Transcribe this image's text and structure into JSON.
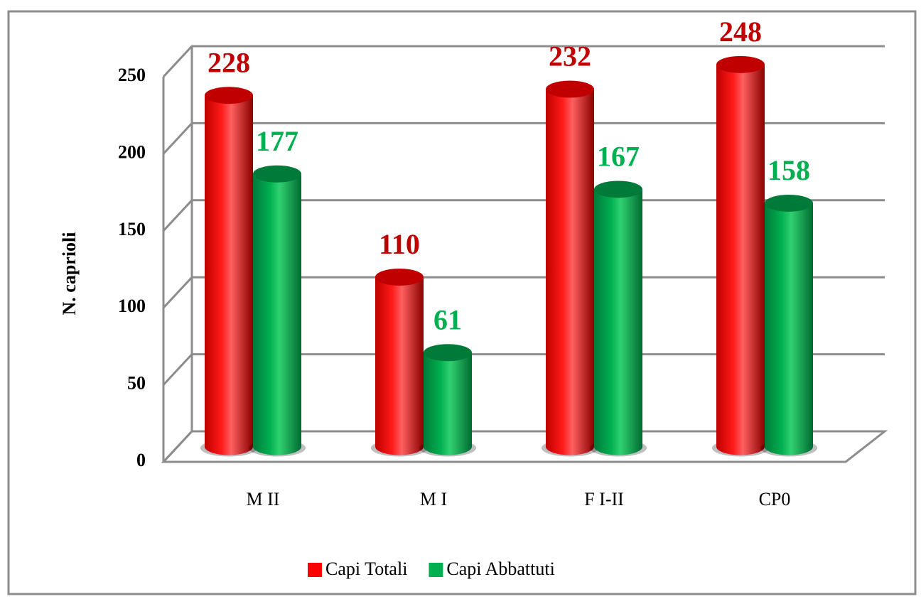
{
  "chart_data": {
    "type": "bar3d",
    "y_axis_label": "N. caprioli",
    "categories": [
      "M II",
      "M I",
      "F I-II",
      "CP0"
    ],
    "series": [
      {
        "name": "Capi Totali",
        "color": "#ff0000",
        "values": [
          228,
          110,
          232,
          248
        ]
      },
      {
        "name": "Capi Abbattuti",
        "color": "#00b050",
        "values": [
          177,
          61,
          167,
          158
        ]
      }
    ],
    "value_label_colors": [
      "#c00000",
      "#00b050"
    ],
    "ylim": [
      0,
      250
    ],
    "yticks": [
      0,
      50,
      100,
      150,
      200,
      250
    ],
    "grid": true,
    "legend": "bottom"
  }
}
